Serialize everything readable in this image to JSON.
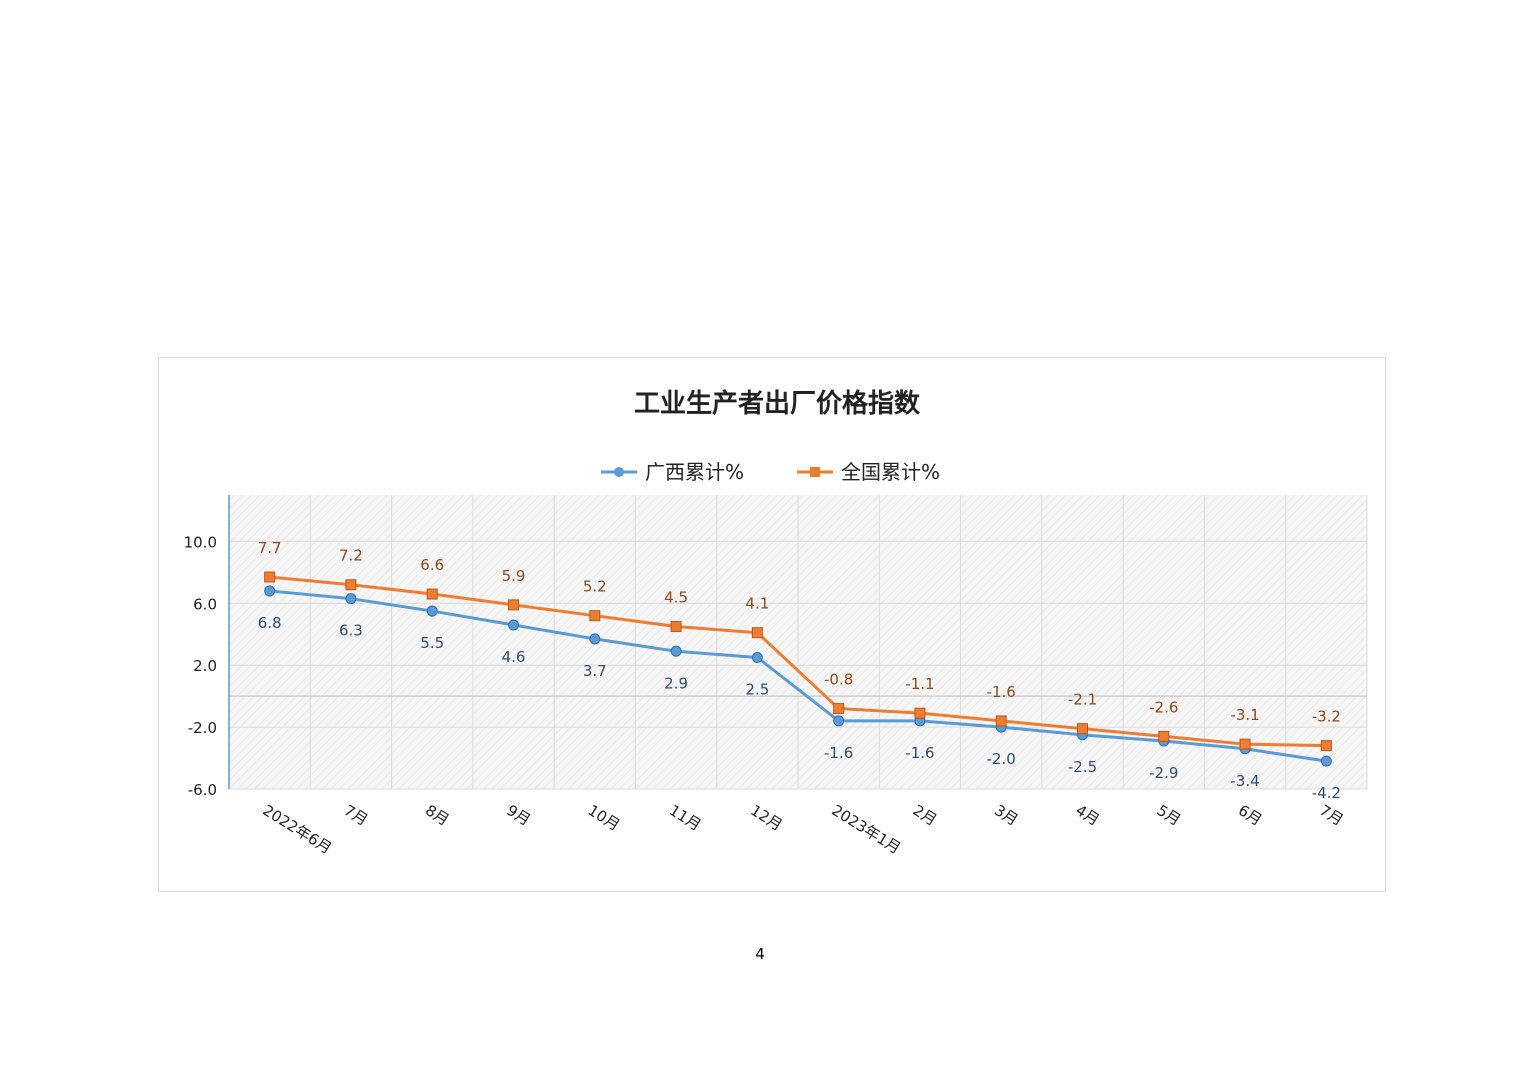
{
  "page": {
    "page_number": "4"
  },
  "chart_data": {
    "type": "line",
    "title": "工业生产者出厂价格指数",
    "xlabel": "",
    "ylabel": "",
    "categories": [
      "2022年6月",
      "7月",
      "8月",
      "9月",
      "10月",
      "11月",
      "12月",
      "2023年1月",
      "2月",
      "3月",
      "4月",
      "5月",
      "6月",
      "7月"
    ],
    "series": [
      {
        "name": "广西累计%",
        "color": "#5b9bd5",
        "label_color": "#2e4e72",
        "marker": "circle",
        "values": [
          6.8,
          6.3,
          5.5,
          4.6,
          3.7,
          2.9,
          2.5,
          -1.6,
          -1.6,
          -2.0,
          -2.5,
          -2.9,
          -3.4,
          -4.2
        ],
        "labels": [
          "6.8",
          "6.3",
          "5.5",
          "4.6",
          "3.7",
          "2.9",
          "2.5",
          "-1.6",
          "-1.6",
          "-2.0",
          "-2.5",
          "-2.9",
          "-3.4",
          "-4.2"
        ]
      },
      {
        "name": "全国累计%",
        "color": "#ed7d31",
        "label_color": "#8f4a1b",
        "marker": "square",
        "values": [
          7.7,
          7.2,
          6.6,
          5.9,
          5.2,
          4.5,
          4.1,
          -0.8,
          -1.1,
          -1.6,
          -2.1,
          -2.6,
          -3.1,
          -3.2
        ],
        "labels": [
          "7.7",
          "7.2",
          "6.6",
          "5.9",
          "5.2",
          "4.5",
          "4.1",
          "-0.8",
          "-1.1",
          "-1.6",
          "-2.1",
          "-2.6",
          "-3.1",
          "-3.2"
        ]
      }
    ],
    "yticks": [
      "10.0",
      "6.0",
      "2.0",
      "-2.0",
      "-6.0"
    ],
    "ylim": [
      -6,
      13
    ],
    "grid": true,
    "legend": "top-center"
  }
}
